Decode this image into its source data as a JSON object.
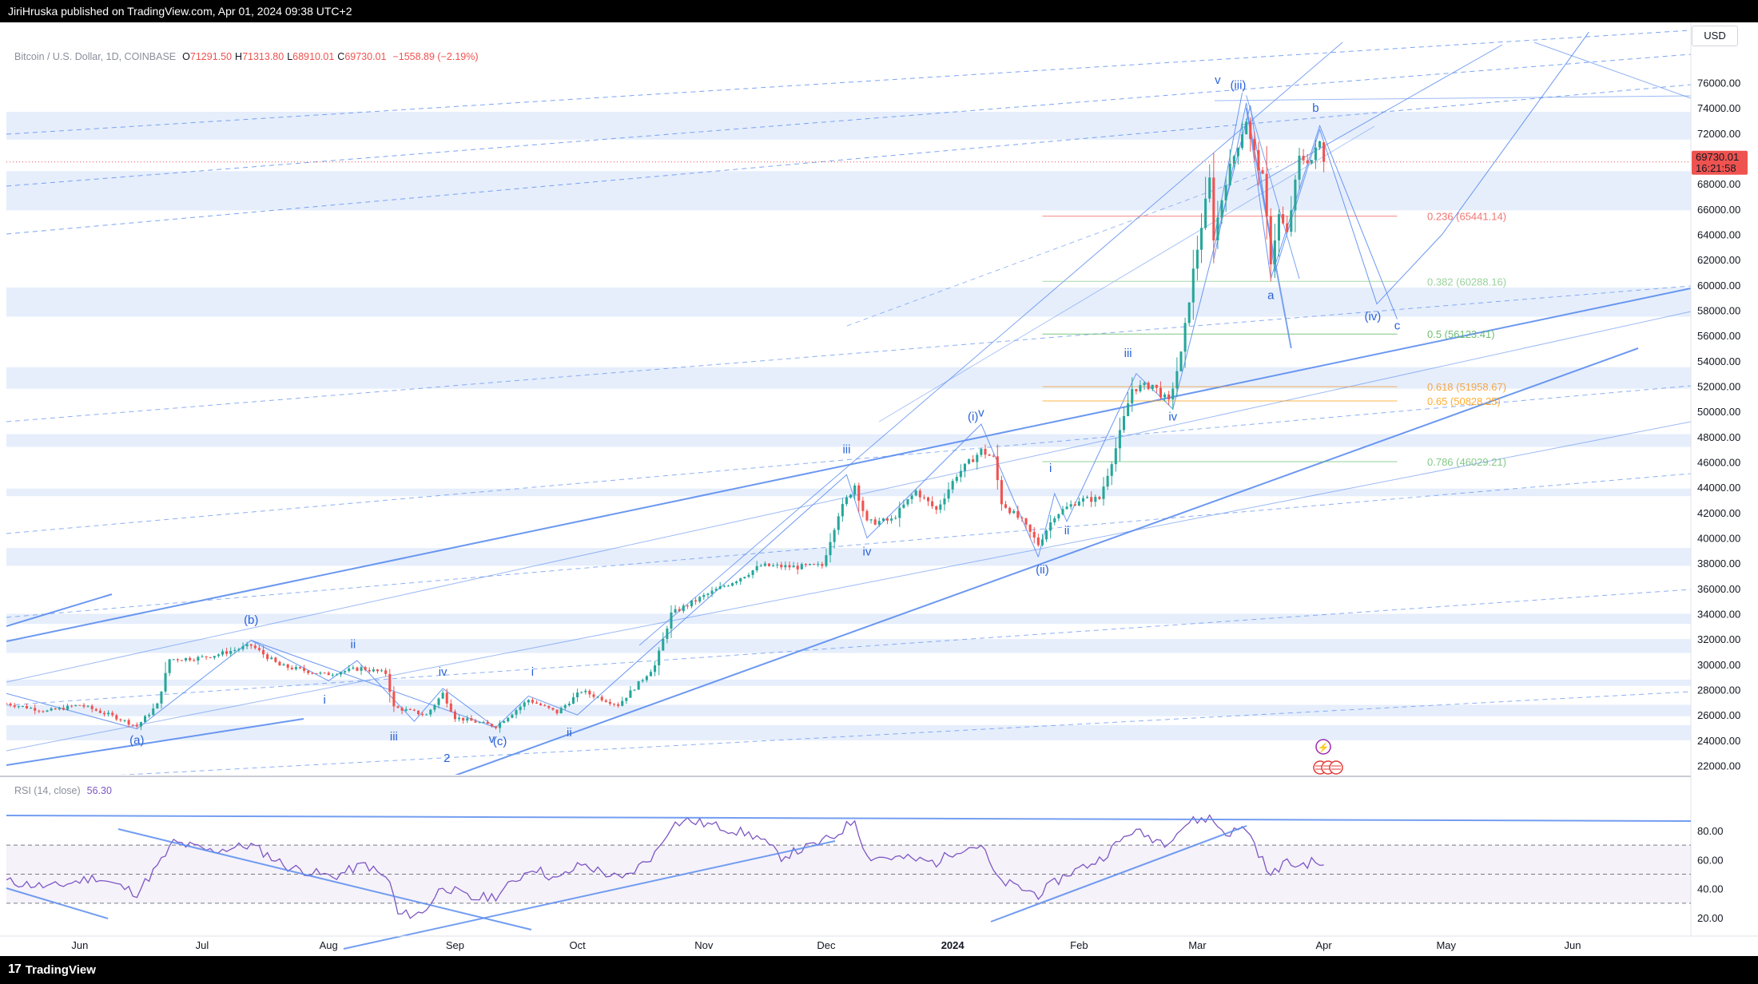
{
  "header": {
    "publish_line": "JiriHruska published on TradingView.com, Apr 01, 2024 09:38 UTC+2"
  },
  "footer": {
    "brand": "TradingView",
    "brand_mark": "17"
  },
  "currency": "USD",
  "legend": {
    "symbol": "Bitcoin / U.S. Dollar, 1D, COINBASE",
    "open_label": "O",
    "open": "71291.50",
    "high_label": "H",
    "high": "71313.80",
    "low_label": "L",
    "low": "68910.01",
    "close_label": "C",
    "close": "69730.01",
    "change": "−1558.89 (−2.19%)"
  },
  "last_price": {
    "value": "69730.01",
    "countdown": "16:21:58"
  },
  "rsi": {
    "label": "RSI (14, close)",
    "value": "56.30"
  },
  "colors": {
    "up": "#26a69a",
    "down": "#ef5350",
    "rsi": "#7e57c2",
    "trend": "#5b8def",
    "zone": "#e6eefc",
    "text": "#131722"
  },
  "chart_data": [
    {
      "type": "candlestick",
      "title": "Bitcoin / U.S. Dollar, 1D, COINBASE",
      "xlabel": "",
      "ylabel": "",
      "ylim": [
        21000,
        77000
      ],
      "y_ticks": [
        "76000.00",
        "74000.00",
        "72000.00",
        "70000.00",
        "68000.00",
        "66000.00",
        "64000.00",
        "62000.00",
        "60000.00",
        "58000.00",
        "56000.00",
        "54000.00",
        "52000.00",
        "50000.00",
        "48000.00",
        "46000.00",
        "44000.00",
        "42000.00",
        "40000.00",
        "38000.00",
        "36000.00",
        "34000.00",
        "32000.00",
        "30000.00",
        "28000.00",
        "26000.00",
        "24000.00",
        "22000.00"
      ],
      "x_ticks": [
        "Jun",
        "Jul",
        "Aug",
        "Sep",
        "Oct",
        "Nov",
        "Dec",
        "2024",
        "Feb",
        "Mar",
        "Apr",
        "May",
        "Jun"
      ],
      "x_range": [
        "2023-05-14",
        "2024-06-30"
      ],
      "grid": false,
      "price_anchors": [
        [
          "2023-05-14",
          26900
        ],
        [
          "2023-05-24",
          26300
        ],
        [
          "2023-06-01",
          26800
        ],
        [
          "2023-06-10",
          25800
        ],
        [
          "2023-06-15",
          25100
        ],
        [
          "2023-06-20",
          26800
        ],
        [
          "2023-06-23",
          30400
        ],
        [
          "2023-06-30",
          30500
        ],
        [
          "2023-07-05",
          30800
        ],
        [
          "2023-07-13",
          31500
        ],
        [
          "2023-07-20",
          29900
        ],
        [
          "2023-07-31",
          29200
        ],
        [
          "2023-08-09",
          29700
        ],
        [
          "2023-08-15",
          29300
        ],
        [
          "2023-08-17",
          26600
        ],
        [
          "2023-08-25",
          26000
        ],
        [
          "2023-08-29",
          27700
        ],
        [
          "2023-09-01",
          25800
        ],
        [
          "2023-09-11",
          25100
        ],
        [
          "2023-09-19",
          27200
        ],
        [
          "2023-09-26",
          26200
        ],
        [
          "2023-10-02",
          27900
        ],
        [
          "2023-10-11",
          26800
        ],
        [
          "2023-10-16",
          28500
        ],
        [
          "2023-10-20",
          29900
        ],
        [
          "2023-10-24",
          34000
        ],
        [
          "2023-11-01",
          35400
        ],
        [
          "2023-11-09",
          36700
        ],
        [
          "2023-11-15",
          37800
        ],
        [
          "2023-11-24",
          37700
        ],
        [
          "2023-11-30",
          37800
        ],
        [
          "2023-12-04",
          41900
        ],
        [
          "2023-12-08",
          44200
        ],
        [
          "2023-12-11",
          41200
        ],
        [
          "2023-12-17",
          41400
        ],
        [
          "2023-12-23",
          43700
        ],
        [
          "2023-12-28",
          42200
        ],
        [
          "2024-01-02",
          45000
        ],
        [
          "2024-01-08",
          46900
        ],
        [
          "2024-01-11",
          46300
        ],
        [
          "2024-01-13",
          42800
        ],
        [
          "2024-01-18",
          41300
        ],
        [
          "2024-01-22",
          39500
        ],
        [
          "2024-01-26",
          41800
        ],
        [
          "2024-02-01",
          43000
        ],
        [
          "2024-02-06",
          43100
        ],
        [
          "2024-02-10",
          47100
        ],
        [
          "2024-02-14",
          51800
        ],
        [
          "2024-02-19",
          52100
        ],
        [
          "2024-02-23",
          50700
        ],
        [
          "2024-02-26",
          54500
        ],
        [
          "2024-02-29",
          61100
        ],
        [
          "2024-03-04",
          68300
        ],
        [
          "2024-03-05",
          63800
        ],
        [
          "2024-03-08",
          68300
        ],
        [
          "2024-03-13",
          73100
        ],
        [
          "2024-03-14",
          71400
        ],
        [
          "2024-03-17",
          68400
        ],
        [
          "2024-03-19",
          61900
        ],
        [
          "2024-03-21",
          65500
        ],
        [
          "2024-03-23",
          64000
        ],
        [
          "2024-03-26",
          70000
        ],
        [
          "2024-03-29",
          69900
        ],
        [
          "2024-03-31",
          71290
        ],
        [
          "2024-04-01",
          69730
        ]
      ],
      "last": {
        "open": 71291.5,
        "high": 71313.8,
        "low": 68910.01,
        "close": 69730.01
      },
      "fib_levels": [
        {
          "label": "0.236 (65441.14)",
          "value": 65441.14,
          "color": "#ef5350"
        },
        {
          "label": "0.382 (60288.16)",
          "value": 60288.16,
          "color": "#81c784"
        },
        {
          "label": "0.5 (56123.41)",
          "value": 56123.41,
          "color": "#4caf50"
        },
        {
          "label": "0.618 (51958.67)",
          "value": 51958.67,
          "color": "#f7931a"
        },
        {
          "label": "0.65 (50828.25)",
          "value": 50828.25,
          "color": "#ff9800"
        },
        {
          "label": "0.786 (46029.21)",
          "value": 46029.21,
          "color": "#66bb6a"
        }
      ],
      "wave_labels": [
        {
          "text": "(a)",
          "date": "2023-06-15",
          "price": 23700
        },
        {
          "text": "(b)",
          "date": "2023-07-13",
          "price": 33200
        },
        {
          "text": "i",
          "date": "2023-07-31",
          "price": 26900
        },
        {
          "text": "ii",
          "date": "2023-08-07",
          "price": 31300
        },
        {
          "text": "iii",
          "date": "2023-08-17",
          "price": 24000
        },
        {
          "text": "iv",
          "date": "2023-08-29",
          "price": 29100
        },
        {
          "text": "2",
          "date": "2023-08-30",
          "price": 22300
        },
        {
          "text": "v",
          "date": "2023-09-10",
          "price": 23800
        },
        {
          "text": "(c)",
          "date": "2023-09-12",
          "price": 23600
        },
        {
          "text": "i",
          "date": "2023-09-20",
          "price": 29100
        },
        {
          "text": "ii",
          "date": "2023-09-29",
          "price": 24300
        },
        {
          "text": "iii",
          "date": "2023-12-06",
          "price": 46700
        },
        {
          "text": "iv",
          "date": "2023-12-11",
          "price": 38600
        },
        {
          "text": "(i)",
          "date": "2024-01-06",
          "price": 49300
        },
        {
          "text": "v",
          "date": "2024-01-08",
          "price": 49600
        },
        {
          "text": "(ii)",
          "date": "2024-01-23",
          "price": 37200
        },
        {
          "text": "i",
          "date": "2024-01-25",
          "price": 45200
        },
        {
          "text": "ii",
          "date": "2024-01-29",
          "price": 40300
        },
        {
          "text": "iii",
          "date": "2024-02-13",
          "price": 54300
        },
        {
          "text": "iv",
          "date": "2024-02-24",
          "price": 49300
        },
        {
          "text": "v",
          "date": "2024-03-06",
          "price": 75900
        },
        {
          "text": "(iii)",
          "date": "2024-03-11",
          "price": 75500
        },
        {
          "text": "b",
          "date": "2024-03-30",
          "price": 73700
        },
        {
          "text": "a",
          "date": "2024-03-19",
          "price": 58900
        },
        {
          "text": "(iv)",
          "date": "2024-04-13",
          "price": 57200
        },
        {
          "text": "c",
          "date": "2024-04-19",
          "price": 56500
        }
      ],
      "zones": [
        [
          73700,
          71500
        ],
        [
          69000,
          65900
        ],
        [
          59800,
          57500
        ],
        [
          53500,
          51800
        ],
        [
          48200,
          47200
        ],
        [
          43900,
          43300
        ],
        [
          39200,
          37800
        ],
        [
          34000,
          33200
        ],
        [
          32000,
          30900
        ],
        [
          28800,
          28300
        ],
        [
          26800,
          25900
        ],
        [
          25200,
          24000
        ]
      ]
    },
    {
      "type": "line",
      "title": "RSI (14, close)",
      "ylim": [
        10,
        92
      ],
      "y_ticks": [
        "80.00",
        "60.00",
        "40.00",
        "20.00"
      ],
      "bands": [
        70,
        50,
        30
      ],
      "values_anchor": [
        [
          "2023-05-14",
          45
        ],
        [
          "2023-05-25",
          41
        ],
        [
          "2023-06-05",
          48
        ],
        [
          "2023-06-15",
          37
        ],
        [
          "2023-06-21",
          59
        ],
        [
          "2023-06-24",
          72
        ],
        [
          "2023-07-03",
          66
        ],
        [
          "2023-07-13",
          70
        ],
        [
          "2023-07-22",
          55
        ],
        [
          "2023-08-02",
          48
        ],
        [
          "2023-08-10",
          57
        ],
        [
          "2023-08-16",
          45
        ],
        [
          "2023-08-18",
          22
        ],
        [
          "2023-08-24",
          23
        ],
        [
          "2023-08-29",
          42
        ],
        [
          "2023-09-05",
          33
        ],
        [
          "2023-09-11",
          35
        ],
        [
          "2023-09-20",
          55
        ],
        [
          "2023-09-26",
          46
        ],
        [
          "2023-10-02",
          57
        ],
        [
          "2023-10-12",
          46
        ],
        [
          "2023-10-20",
          64
        ],
        [
          "2023-10-24",
          84
        ],
        [
          "2023-10-28",
          87
        ],
        [
          "2023-11-06",
          82
        ],
        [
          "2023-11-14",
          76
        ],
        [
          "2023-11-20",
          62
        ],
        [
          "2023-11-28",
          70
        ],
        [
          "2023-12-03",
          76
        ],
        [
          "2023-12-08",
          88
        ],
        [
          "2023-12-11",
          62
        ],
        [
          "2023-12-20",
          61
        ],
        [
          "2023-12-28",
          58
        ],
        [
          "2024-01-02",
          67
        ],
        [
          "2024-01-08",
          70
        ],
        [
          "2024-01-12",
          46
        ],
        [
          "2024-01-22",
          36
        ],
        [
          "2024-01-29",
          50
        ],
        [
          "2024-02-06",
          60
        ],
        [
          "2024-02-14",
          80
        ],
        [
          "2024-02-22",
          72
        ],
        [
          "2024-02-28",
          86
        ],
        [
          "2024-03-04",
          89
        ],
        [
          "2024-03-08",
          78
        ],
        [
          "2024-03-13",
          82
        ],
        [
          "2024-03-16",
          65
        ],
        [
          "2024-03-19",
          48
        ],
        [
          "2024-03-22",
          58
        ],
        [
          "2024-03-26",
          56
        ],
        [
          "2024-03-30",
          59
        ],
        [
          "2024-04-01",
          56.3
        ]
      ]
    }
  ]
}
